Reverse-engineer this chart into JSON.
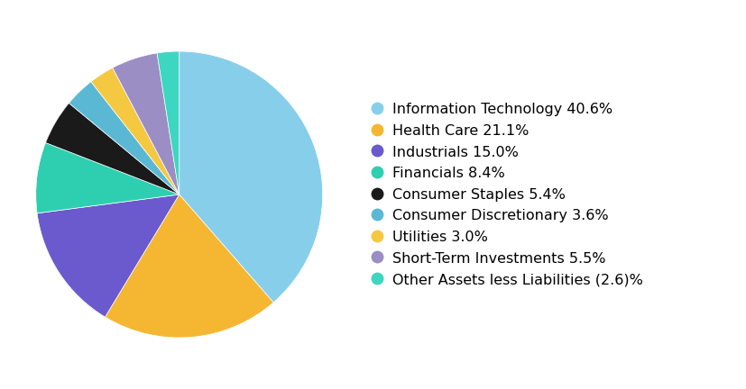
{
  "labels": [
    "Information Technology 40.6%",
    "Health Care 21.1%",
    "Industrials 15.0%",
    "Financials 8.4%",
    "Consumer Staples 5.4%",
    "Consumer Discretionary 3.6%",
    "Utilities 3.0%",
    "Short-Term Investments 5.5%",
    "Other Assets less Liabilities (2.6)%"
  ],
  "values": [
    40.6,
    21.1,
    15.0,
    8.4,
    5.4,
    3.6,
    3.0,
    5.5,
    2.6
  ],
  "colors": [
    "#87CEEB",
    "#F5B731",
    "#6A5ACD",
    "#2ECFB1",
    "#1A1A1A",
    "#5BB8D4",
    "#F5C842",
    "#9B8EC4",
    "#3DD6C0"
  ],
  "background_color": "#FFFFFF",
  "legend_fontsize": 11.5,
  "figsize": [
    8.28,
    4.32
  ],
  "startangle": 90
}
